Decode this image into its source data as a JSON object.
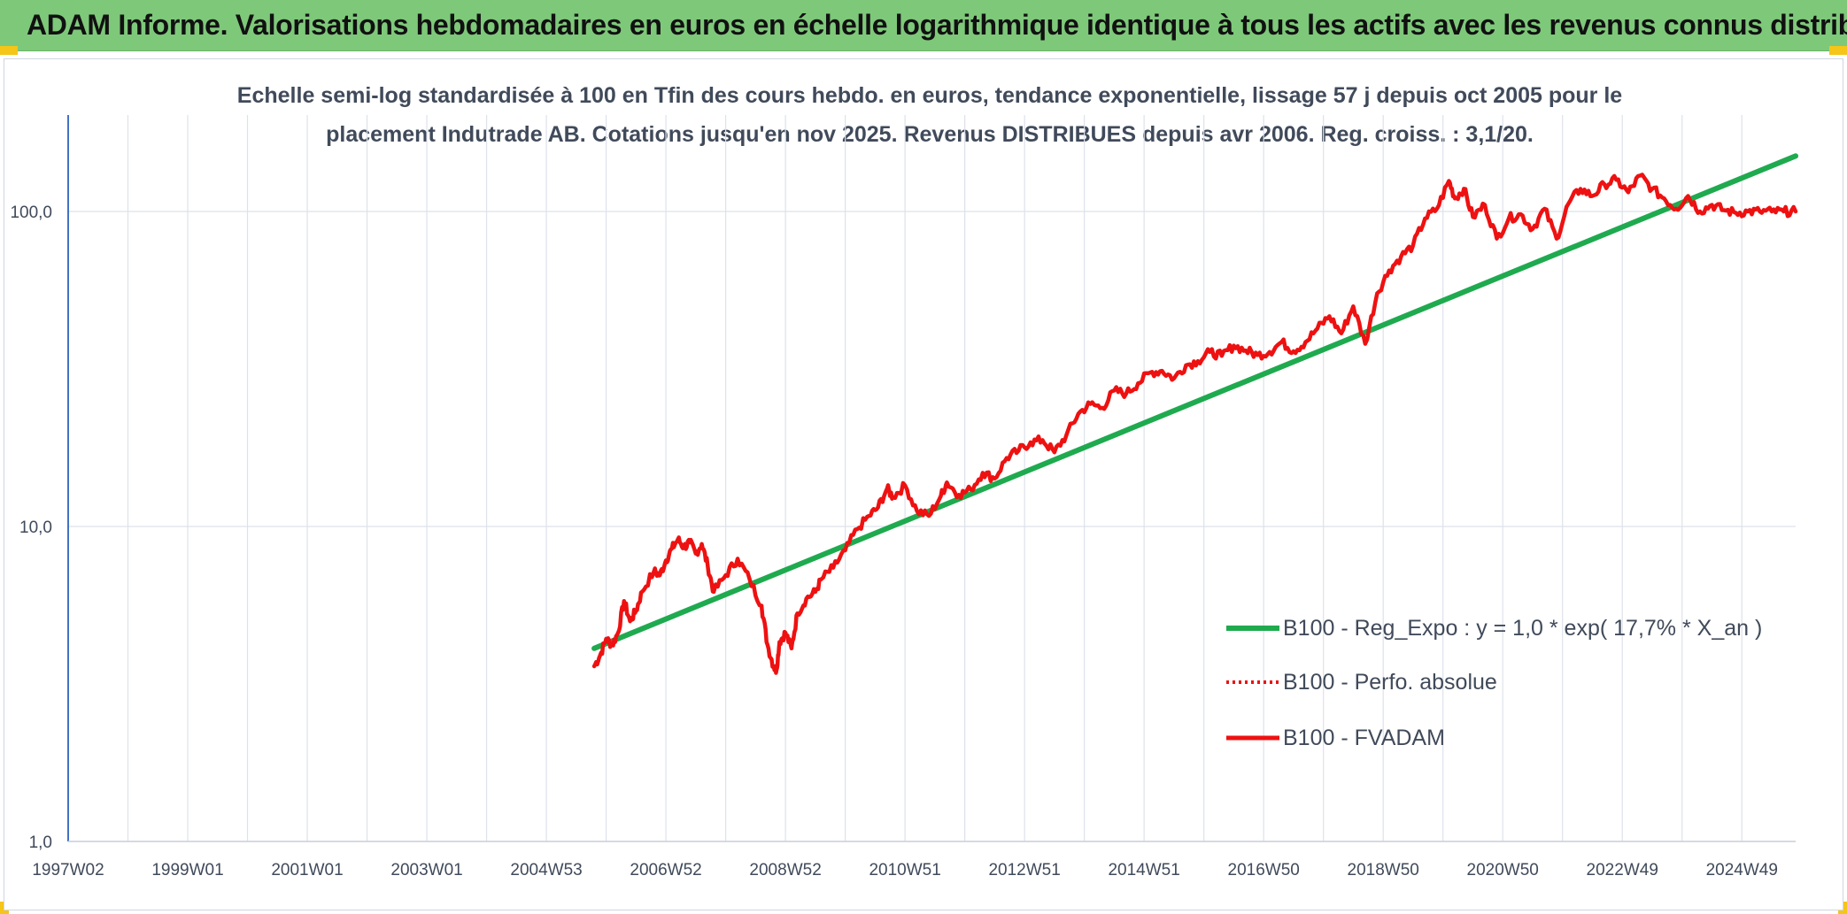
{
  "header": {
    "title": "ADAM Informe. Valorisations hebdomadaires en euros en échelle logarithmique identique à tous les actifs avec les revenus connus distribués"
  },
  "colors": {
    "banner": "#7ec87a",
    "trend": "#1faa4f",
    "fvadam": "#ee1111",
    "grid": "#dde2ea",
    "axis": "#4472c4",
    "corner": "#f5c518"
  },
  "chart_data": {
    "type": "line",
    "title_line1": "Echelle semi-log standardisée à 100 en Tfin des cours hebdo. en euros, tendance exponentielle, lissage 57 j depuis oct 2005 pour le",
    "title_line2": "placement Indutrade AB. Cotations jusqu'en nov 2025. Revenus DISTRIBUES depuis avr 2006. Reg. croiss. : 3,1/20.",
    "y_scale": "log",
    "ylim": [
      1,
      160
    ],
    "xlim": [
      1997.0,
      2025.9
    ],
    "y_ticks": [
      {
        "value": 1,
        "label": "1,0"
      },
      {
        "value": 10,
        "label": "10,0"
      },
      {
        "value": 100,
        "label": "100,0"
      }
    ],
    "x_ticks": [
      {
        "value": 1997.0,
        "label": "1997W02"
      },
      {
        "value": 1999.0,
        "label": "1999W01"
      },
      {
        "value": 2001.0,
        "label": "2001W01"
      },
      {
        "value": 2003.0,
        "label": "2003W01"
      },
      {
        "value": 2005.0,
        "label": "2004W53"
      },
      {
        "value": 2007.0,
        "label": "2006W52"
      },
      {
        "value": 2009.0,
        "label": "2008W52"
      },
      {
        "value": 2011.0,
        "label": "2010W51"
      },
      {
        "value": 2013.0,
        "label": "2012W51"
      },
      {
        "value": 2015.0,
        "label": "2014W51"
      },
      {
        "value": 2017.0,
        "label": "2016W50"
      },
      {
        "value": 2019.0,
        "label": "2018W50"
      },
      {
        "value": 2021.0,
        "label": "2020W50"
      },
      {
        "value": 2023.0,
        "label": "2022W49"
      },
      {
        "value": 2025.0,
        "label": "2024W49"
      }
    ],
    "grid": true,
    "legend_position": "right",
    "series": [
      {
        "name": "B100 - Reg_Expo : y = 1,0 * exp( 17,7% *  X_an )",
        "style": "solid-green",
        "x": [
          2005.8,
          2025.9
        ],
        "y": [
          4.1,
          150
        ]
      },
      {
        "name": "B100 - Perfo. absolue",
        "style": "dotted-red",
        "x": [],
        "y": []
      },
      {
        "name": "B100 - FVADAM",
        "style": "solid-red",
        "x": [
          2005.8,
          2005.9,
          2006.0,
          2006.1,
          2006.2,
          2006.3,
          2006.4,
          2006.5,
          2006.6,
          2006.8,
          2006.9,
          2007.0,
          2007.1,
          2007.2,
          2007.3,
          2007.4,
          2007.5,
          2007.6,
          2007.7,
          2007.8,
          2008.0,
          2008.2,
          2008.4,
          2008.6,
          2008.7,
          2008.8,
          2008.85,
          2008.9,
          2009.0,
          2009.1,
          2009.2,
          2009.35,
          2009.5,
          2009.6,
          2009.8,
          2010.0,
          2010.2,
          2010.4,
          2010.55,
          2010.7,
          2010.8,
          2011.0,
          2011.2,
          2011.4,
          2011.6,
          2011.7,
          2011.9,
          2012.1,
          2012.3,
          2012.5,
          2012.7,
          2012.9,
          2013.1,
          2013.3,
          2013.5,
          2013.7,
          2013.9,
          2014.1,
          2014.3,
          2014.5,
          2014.7,
          2014.9,
          2015.1,
          2015.3,
          2015.5,
          2015.7,
          2015.9,
          2016.1,
          2016.3,
          2016.5,
          2016.7,
          2016.9,
          2017.1,
          2017.3,
          2017.5,
          2017.7,
          2017.9,
          2018.1,
          2018.3,
          2018.5,
          2018.7,
          2018.9,
          2019.1,
          2019.3,
          2019.5,
          2019.7,
          2019.9,
          2020.1,
          2020.2,
          2020.35,
          2020.5,
          2020.7,
          2020.9,
          2021.1,
          2021.3,
          2021.5,
          2021.7,
          2021.9,
          2022.1,
          2022.3,
          2022.5,
          2022.7,
          2022.9,
          2023.1,
          2023.3,
          2023.5,
          2023.7,
          2023.9,
          2024.1,
          2024.3,
          2024.5,
          2024.7,
          2024.9,
          2025.1,
          2025.3,
          2025.5,
          2025.7,
          2025.9
        ],
        "y": [
          3.6,
          3.9,
          4.4,
          4.2,
          4.6,
          5.8,
          5.0,
          5.4,
          6.2,
          7.2,
          7.0,
          7.8,
          8.5,
          9.1,
          8.6,
          8.9,
          8.2,
          8.8,
          7.5,
          6.2,
          7.0,
          7.9,
          6.8,
          5.6,
          4.2,
          3.6,
          3.5,
          4.3,
          4.6,
          4.1,
          5.3,
          5.9,
          6.2,
          6.8,
          7.4,
          8.4,
          9.8,
          10.8,
          11.5,
          13.2,
          12.4,
          13.5,
          11.2,
          10.8,
          12.5,
          13.8,
          12.6,
          13.1,
          14.8,
          14.2,
          16.5,
          17.4,
          18.5,
          18.8,
          17.2,
          19.5,
          22.8,
          24.5,
          23.8,
          27.0,
          26.4,
          28.5,
          30.8,
          31.2,
          29.5,
          32.5,
          33.5,
          35.8,
          34.8,
          37.5,
          36.2,
          35.0,
          35.8,
          38.5,
          36.0,
          38.5,
          42.5,
          46.5,
          41.0,
          50.0,
          38.0,
          55.0,
          65.0,
          72.0,
          78.0,
          95.0,
          102.0,
          125.0,
          110.0,
          118.0,
          96.0,
          105.0,
          82.0,
          95.0,
          98.0,
          88.0,
          102.0,
          82.0,
          106.0,
          118.0,
          112.0,
          122.0,
          126.0,
          115.0,
          130.0,
          118.0,
          110.0,
          102.0,
          112.0,
          100.0,
          105.0,
          101.0,
          99.0,
          100.0,
          100.0,
          100.0,
          100.0,
          100.0
        ]
      }
    ]
  }
}
